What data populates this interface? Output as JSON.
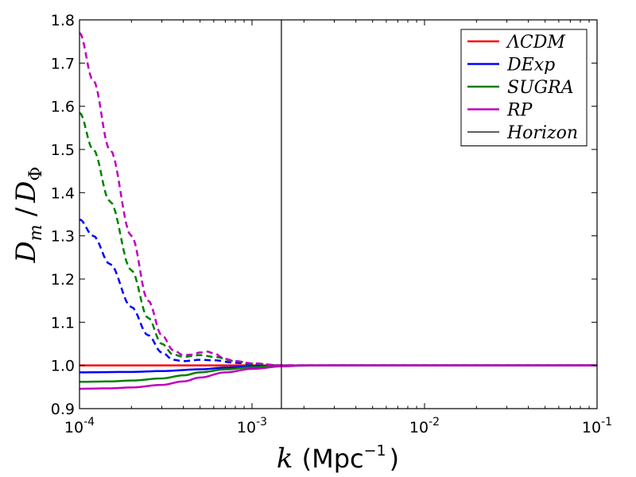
{
  "chart_data": {
    "type": "line",
    "title": "",
    "xscale": "log",
    "xlim": [
      0.0001,
      0.1
    ],
    "ylim": [
      0.9,
      1.8
    ],
    "xlabel": "k (Mpc^-1)",
    "xlabel_var": "k",
    "xlabel_unit": "Mpc",
    "xlabel_exp": "−1",
    "ylabel": "D_m / D_Φ",
    "yticks": [
      0.9,
      1.0,
      1.1,
      1.2,
      1.3,
      1.4,
      1.5,
      1.6,
      1.7,
      1.8
    ],
    "ytick_labels": [
      "0.9",
      "1.0",
      "1.1",
      "1.2",
      "1.3",
      "1.4",
      "1.5",
      "1.6",
      "1.7",
      "1.8"
    ],
    "xticks": [
      {
        "value": 0.0001,
        "base": "10",
        "exp": "-4"
      },
      {
        "value": 0.001,
        "base": "10",
        "exp": "-3"
      },
      {
        "value": 0.01,
        "base": "10",
        "exp": "-2"
      },
      {
        "value": 0.1,
        "base": "10",
        "exp": "-1"
      }
    ],
    "legend_position": "top-right",
    "horizon": {
      "name": "Horizon",
      "x": 0.00148,
      "color": "#000000"
    },
    "series": [
      {
        "name": "ΛCDM",
        "color": "#ff0000",
        "style": "solid",
        "x": [
          0.0001,
          0.1
        ],
        "y": [
          1.0,
          1.0
        ]
      },
      {
        "name": "DExp",
        "color": "#0000ff",
        "style": "solid",
        "x": [
          0.0001,
          0.0002,
          0.0003,
          0.0005,
          0.0007,
          0.001,
          0.0015,
          0.003,
          0.1
        ],
        "y": [
          0.984,
          0.985,
          0.987,
          0.991,
          0.995,
          0.998,
          0.9995,
          1.0,
          1.0
        ]
      },
      {
        "name": "DExp",
        "color": "#0000ff",
        "style": "dashed",
        "x": [
          0.0001,
          0.00012,
          0.00015,
          0.0002,
          0.00025,
          0.0003,
          0.00035,
          0.0004,
          0.0005,
          0.0006,
          0.0008,
          0.001,
          0.0015,
          0.002,
          0.1
        ],
        "y": [
          1.338,
          1.3,
          1.235,
          1.135,
          1.07,
          1.03,
          1.013,
          1.01,
          1.013,
          1.012,
          1.006,
          1.003,
          1.0,
          1.0,
          1.0
        ]
      },
      {
        "name": "SUGRA",
        "color": "#008000",
        "style": "solid",
        "x": [
          0.0001,
          0.00015,
          0.0002,
          0.0003,
          0.0004,
          0.0005,
          0.0007,
          0.001,
          0.0015,
          0.002,
          0.1
        ],
        "y": [
          0.962,
          0.963,
          0.965,
          0.97,
          0.977,
          0.984,
          0.991,
          0.996,
          0.999,
          1.0,
          1.0
        ]
      },
      {
        "name": "SUGRA",
        "color": "#008000",
        "style": "dashed",
        "x": [
          0.0001,
          0.00012,
          0.00015,
          0.0002,
          0.00025,
          0.0003,
          0.00035,
          0.0004,
          0.0005,
          0.0006,
          0.0008,
          0.001,
          0.0015,
          0.002,
          0.1
        ],
        "y": [
          1.585,
          1.5,
          1.38,
          1.22,
          1.11,
          1.05,
          1.025,
          1.02,
          1.024,
          1.02,
          1.01,
          1.004,
          1.0,
          1.0,
          1.0
        ]
      },
      {
        "name": "RP",
        "color": "#bf00bf",
        "style": "solid",
        "x": [
          0.0001,
          0.00015,
          0.0002,
          0.0003,
          0.0004,
          0.0005,
          0.0007,
          0.001,
          0.0015,
          0.002,
          0.003,
          0.1
        ],
        "y": [
          0.946,
          0.947,
          0.949,
          0.955,
          0.963,
          0.972,
          0.984,
          0.992,
          0.998,
          1.0,
          1.0,
          1.0
        ]
      },
      {
        "name": "RP",
        "color": "#bf00bf",
        "style": "dashed",
        "x": [
          0.0001,
          0.00012,
          0.00015,
          0.0002,
          0.00025,
          0.0003,
          0.00035,
          0.0004,
          0.00045,
          0.0005,
          0.00055,
          0.0006,
          0.0007,
          0.0008,
          0.001,
          0.0015,
          0.002,
          0.1
        ],
        "y": [
          1.77,
          1.66,
          1.5,
          1.3,
          1.15,
          1.07,
          1.035,
          1.024,
          1.025,
          1.03,
          1.032,
          1.028,
          1.015,
          1.01,
          1.005,
          1.0,
          1.0,
          1.0
        ]
      }
    ],
    "legend": [
      {
        "label": "ΛCDM",
        "color": "#ff0000",
        "lw": 2.5
      },
      {
        "label": "DExp",
        "color": "#0000ff",
        "lw": 2.5
      },
      {
        "label": "SUGRA",
        "color": "#008000",
        "lw": 2.5
      },
      {
        "label": "RP",
        "color": "#bf00bf",
        "lw": 2.5
      },
      {
        "label": "Horizon",
        "color": "#000000",
        "lw": 1.2
      }
    ]
  }
}
